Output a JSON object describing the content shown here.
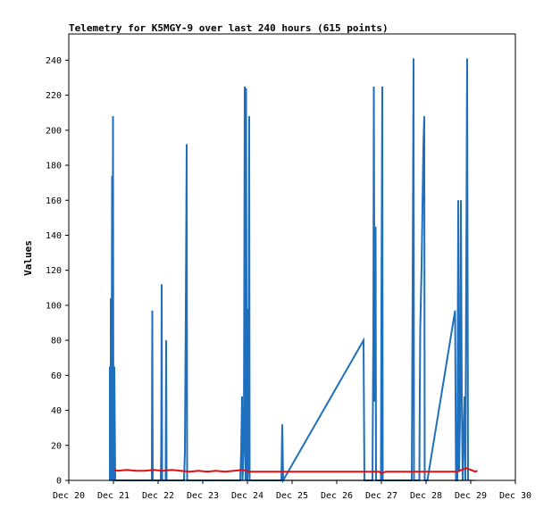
{
  "chart_data": {
    "type": "line",
    "title": "Telemetry for K5MGY-9 over last 240 hours (615 points)",
    "xlabel": "",
    "ylabel": "Values",
    "x_ticks": [
      "Dec 20",
      "Dec 21",
      "Dec 22",
      "Dec 23",
      "Dec 24",
      "Dec 25",
      "Dec 26",
      "Dec 27",
      "Dec 28",
      "Dec 29",
      "Dec 30"
    ],
    "y_ticks": [
      "0",
      "20",
      "40",
      "60",
      "80",
      "100",
      "120",
      "140",
      "160",
      "180",
      "200",
      "220",
      "240"
    ],
    "xlim": [
      20,
      30
    ],
    "ylim": [
      0,
      255
    ],
    "grid": false,
    "colors": {
      "blue": "#1f6fbf",
      "red": "#e01010",
      "black": "#000000"
    },
    "series": [
      {
        "color": "blue",
        "points": [
          [
            20.92,
            0
          ],
          [
            20.92,
            65
          ],
          [
            20.94,
            0
          ],
          [
            20.94,
            104
          ],
          [
            20.96,
            35
          ],
          [
            20.97,
            174
          ],
          [
            20.98,
            0
          ],
          [
            20.99,
            208
          ],
          [
            21.0,
            0
          ],
          [
            21.02,
            65
          ],
          [
            21.04,
            0
          ],
          [
            21.08,
            0
          ],
          [
            21.86,
            0
          ],
          [
            21.87,
            97
          ],
          [
            21.88,
            0
          ],
          [
            22.06,
            0
          ],
          [
            22.07,
            17
          ],
          [
            22.08,
            112
          ],
          [
            22.09,
            0
          ],
          [
            22.17,
            0
          ],
          [
            22.18,
            80
          ],
          [
            22.19,
            0
          ],
          [
            22.58,
            0
          ],
          [
            22.6,
            16
          ],
          [
            22.62,
            97
          ],
          [
            22.64,
            192
          ],
          [
            22.65,
            0
          ],
          [
            23.84,
            0
          ],
          [
            23.86,
            17
          ],
          [
            23.87,
            32
          ],
          [
            23.88,
            48
          ],
          [
            23.89,
            0
          ],
          [
            23.92,
            17
          ],
          [
            23.94,
            225
          ],
          [
            23.96,
            0
          ],
          [
            23.97,
            224
          ],
          [
            23.98,
            90
          ],
          [
            23.99,
            98
          ],
          [
            24.0,
            0
          ],
          [
            24.02,
            12
          ],
          [
            24.04,
            208
          ],
          [
            24.05,
            0
          ],
          [
            24.76,
            0
          ],
          [
            24.77,
            16
          ],
          [
            24.78,
            32
          ],
          [
            24.8,
            0
          ],
          [
            26.6,
            80
          ],
          [
            26.62,
            0
          ],
          [
            26.8,
            0
          ],
          [
            26.82,
            88
          ],
          [
            26.83,
            225
          ],
          [
            26.85,
            45
          ],
          [
            26.87,
            145
          ],
          [
            26.88,
            0
          ],
          [
            26.99,
            0
          ],
          [
            27.0,
            97
          ],
          [
            27.02,
            225
          ],
          [
            27.03,
            0
          ],
          [
            27.68,
            0
          ],
          [
            27.7,
            113
          ],
          [
            27.72,
            241
          ],
          [
            27.73,
            0
          ],
          [
            27.85,
            0
          ],
          [
            27.86,
            51
          ],
          [
            27.87,
            87
          ],
          [
            27.9,
            122
          ],
          [
            27.92,
            156
          ],
          [
            27.94,
            191
          ],
          [
            27.96,
            208
          ],
          [
            27.97,
            0
          ],
          [
            28.03,
            0
          ],
          [
            28.65,
            97
          ],
          [
            28.67,
            0
          ],
          [
            28.7,
            0
          ],
          [
            28.72,
            160
          ],
          [
            28.74,
            5
          ],
          [
            28.76,
            36
          ],
          [
            28.78,
            160
          ],
          [
            28.8,
            48
          ],
          [
            28.82,
            0
          ],
          [
            28.86,
            48
          ],
          [
            28.88,
            0
          ],
          [
            28.92,
            241
          ],
          [
            28.94,
            0
          ]
        ]
      },
      {
        "color": "red",
        "points": [
          [
            21.0,
            6
          ],
          [
            21.1,
            5.5
          ],
          [
            21.3,
            6
          ],
          [
            21.5,
            5.5
          ],
          [
            21.7,
            5.5
          ],
          [
            21.9,
            6
          ],
          [
            22.1,
            5.5
          ],
          [
            22.3,
            6
          ],
          [
            22.5,
            5.5
          ],
          [
            22.7,
            5
          ],
          [
            22.9,
            5.5
          ],
          [
            23.1,
            5
          ],
          [
            23.3,
            5.5
          ],
          [
            23.5,
            5
          ],
          [
            23.7,
            5.5
          ],
          [
            23.9,
            6
          ],
          [
            24.05,
            5
          ],
          [
            26.95,
            5
          ],
          [
            27.0,
            4
          ],
          [
            27.1,
            5
          ],
          [
            28.7,
            5
          ],
          [
            28.8,
            6
          ],
          [
            28.9,
            7
          ],
          [
            29.0,
            6
          ],
          [
            29.1,
            5
          ],
          [
            29.15,
            5.5
          ]
        ]
      },
      {
        "color": "black",
        "points": [
          [
            20.9,
            0
          ],
          [
            29.1,
            0
          ]
        ]
      }
    ]
  }
}
